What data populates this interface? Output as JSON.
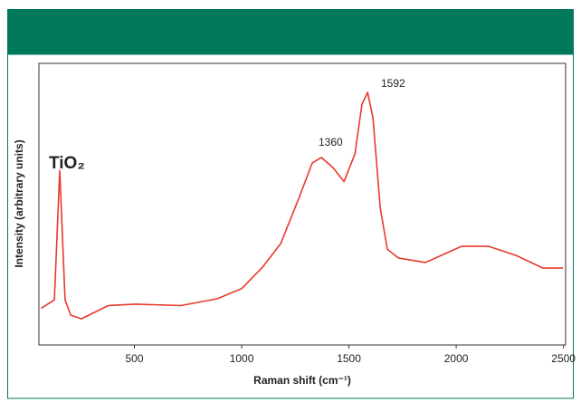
{
  "chart_data": {
    "type": "line",
    "x_label": "Raman shift (cm⁻¹)",
    "y_label": "Intensity (arbitrary units)",
    "annotations": [
      "TiO₂",
      "1360",
      "1592"
    ],
    "x": [
      65,
      127,
      152,
      177,
      203,
      253,
      378,
      505,
      717,
      886,
      1000,
      1097,
      1182,
      1266,
      1329,
      1371,
      1426,
      1477,
      1528,
      1561,
      1587,
      1612,
      1646,
      1679,
      1730,
      1857,
      2025,
      2152,
      2279,
      2405,
      2498
    ],
    "values": [
      13,
      16,
      62,
      16,
      10.6,
      9.3,
      14,
      14.5,
      14,
      16.4,
      20,
      27.6,
      36,
      52,
      64.6,
      66.6,
      63,
      58,
      67.8,
      85.5,
      89.7,
      80.7,
      48.6,
      34,
      30.9,
      29.3,
      35,
      35,
      31.8,
      27.3,
      27.3
    ],
    "color": "#e8392b",
    "xlim": [
      55,
      2510
    ],
    "ylim": [
      0,
      100
    ],
    "xticks": [
      500,
      1000,
      1500,
      2000,
      2500
    ]
  }
}
